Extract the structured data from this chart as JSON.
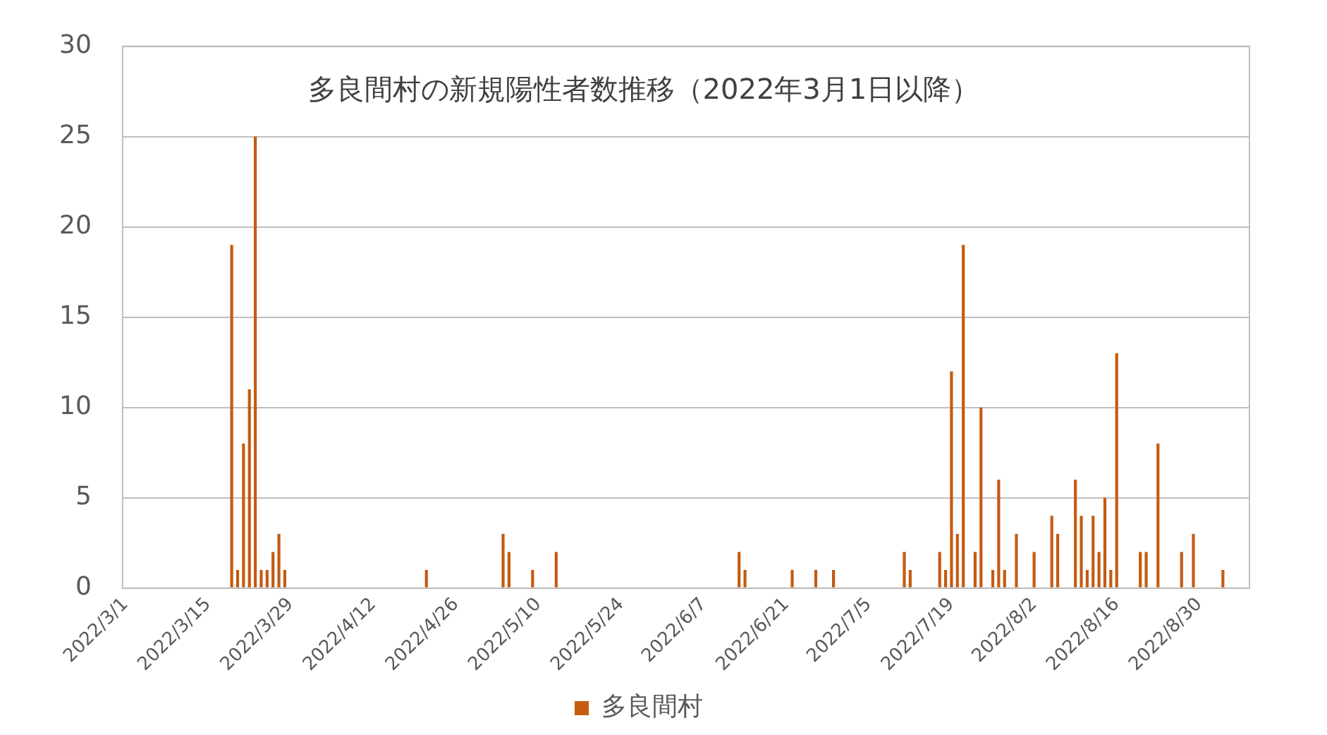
{
  "chart_data": {
    "type": "bar",
    "title": "多良間村の新規陽性者数推移（2022年3月1日以降）",
    "categories": [
      "2022/3/1",
      null,
      null,
      null,
      null,
      null,
      null,
      null,
      null,
      null,
      null,
      null,
      null,
      null,
      "2022/3/15",
      null,
      null,
      null,
      null,
      null,
      null,
      null,
      null,
      null,
      null,
      null,
      null,
      null,
      "2022/3/29",
      null,
      null,
      null,
      null,
      null,
      null,
      null,
      null,
      null,
      null,
      null,
      null,
      null,
      "2022/4/12",
      null,
      null,
      null,
      null,
      null,
      null,
      null,
      null,
      null,
      null,
      null,
      null,
      null,
      "2022/4/26",
      null,
      null,
      null,
      null,
      null,
      null,
      null,
      null,
      null,
      null,
      null,
      null,
      null,
      "2022/5/10",
      null,
      null,
      null,
      null,
      null,
      null,
      null,
      null,
      null,
      null,
      null,
      null,
      null,
      "2022/5/24",
      null,
      null,
      null,
      null,
      null,
      null,
      null,
      null,
      null,
      null,
      null,
      null,
      null,
      "2022/6/7",
      null,
      null,
      null,
      null,
      null,
      null,
      null,
      null,
      null,
      null,
      null,
      null,
      null,
      "2022/6/21",
      null,
      null,
      null,
      null,
      null,
      null,
      null,
      null,
      null,
      null,
      null,
      null,
      null,
      "2022/7/5",
      null,
      null,
      null,
      null,
      null,
      null,
      null,
      null,
      null,
      null,
      null,
      null,
      null,
      "2022/7/19",
      null,
      null,
      null,
      null,
      null,
      null,
      null,
      null,
      null,
      null,
      null,
      null,
      null,
      "2022/8/2",
      null,
      null,
      null,
      null,
      null,
      null,
      null,
      null,
      null,
      null,
      null,
      null,
      null,
      "2022/8/16",
      null,
      null,
      null,
      null,
      null,
      null,
      null,
      null,
      null,
      null,
      null,
      null,
      null,
      "2022/8/30",
      null,
      null,
      null,
      null,
      null,
      null,
      null,
      null
    ],
    "series": [
      {
        "name": "多良間村",
        "color": "#c55a11",
        "values": [
          0,
          0,
          0,
          0,
          0,
          0,
          0,
          0,
          0,
          0,
          0,
          0,
          0,
          0,
          0,
          0,
          0,
          0,
          19,
          1,
          8,
          11,
          25,
          1,
          1,
          2,
          3,
          1,
          0,
          0,
          0,
          0,
          0,
          0,
          0,
          0,
          0,
          0,
          0,
          0,
          0,
          0,
          0,
          0,
          0,
          0,
          0,
          0,
          0,
          0,
          0,
          1,
          0,
          0,
          0,
          0,
          0,
          0,
          0,
          0,
          0,
          0,
          0,
          0,
          3,
          2,
          0,
          0,
          0,
          1,
          0,
          0,
          0,
          2,
          0,
          0,
          0,
          0,
          0,
          0,
          0,
          0,
          0,
          0,
          0,
          0,
          0,
          0,
          0,
          0,
          0,
          0,
          0,
          0,
          0,
          0,
          0,
          0,
          0,
          0,
          0,
          0,
          0,
          0,
          2,
          1,
          0,
          0,
          0,
          0,
          0,
          0,
          0,
          1,
          0,
          0,
          0,
          1,
          0,
          0,
          1,
          0,
          0,
          0,
          0,
          0,
          0,
          0,
          0,
          0,
          0,
          0,
          2,
          1,
          0,
          0,
          0,
          0,
          2,
          1,
          12,
          3,
          19,
          0,
          2,
          10,
          0,
          1,
          6,
          1,
          0,
          3,
          0,
          0,
          2,
          0,
          0,
          4,
          3,
          0,
          0,
          6,
          4,
          1,
          4,
          2,
          5,
          1,
          13,
          0,
          0,
          0,
          2,
          2,
          0,
          8,
          0,
          0,
          0,
          2,
          0,
          3,
          0,
          0,
          0,
          0,
          1,
          0,
          0,
          0,
          0
        ]
      }
    ],
    "ylim": [
      0,
      30
    ],
    "yticks": [
      0,
      5,
      10,
      15,
      20,
      25,
      30
    ],
    "grid": "y",
    "legend": "bottom"
  }
}
